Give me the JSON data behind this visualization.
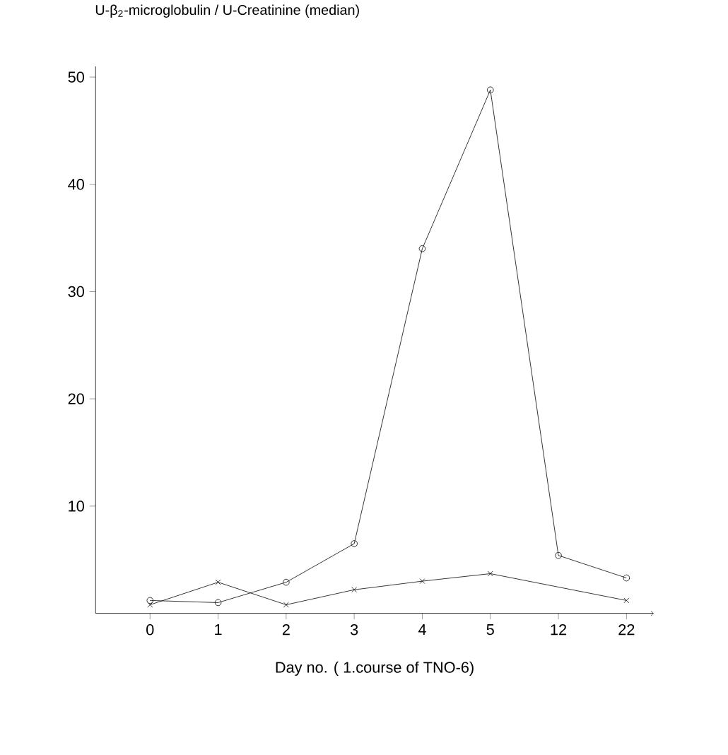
{
  "chart_data": {
    "type": "line",
    "ylabel": "U-β$_{2}$-microglobulin / U-Creatinine (median)",
    "xlabel": "Day no. ( 1.course of TNO-6)",
    "categories": [
      "0",
      "1",
      "2",
      "3",
      "4",
      "5",
      "12",
      "22"
    ],
    "series": [
      {
        "color": "#000000",
        "marker": "circle",
        "values": [
          1.2,
          1.0,
          2.9,
          6.5,
          34,
          48.8,
          5.4,
          3.3
        ]
      },
      {
        "color": "#000000",
        "marker": "cross",
        "values": [
          0.8,
          2.9,
          0.8,
          2.2,
          3.0,
          3.7,
          null,
          1.2
        ]
      }
    ],
    "ylim": [
      0,
      51
    ],
    "yticks": [
      10,
      20,
      30,
      40,
      50
    ],
    "grid": false,
    "line_style": "solid"
  }
}
